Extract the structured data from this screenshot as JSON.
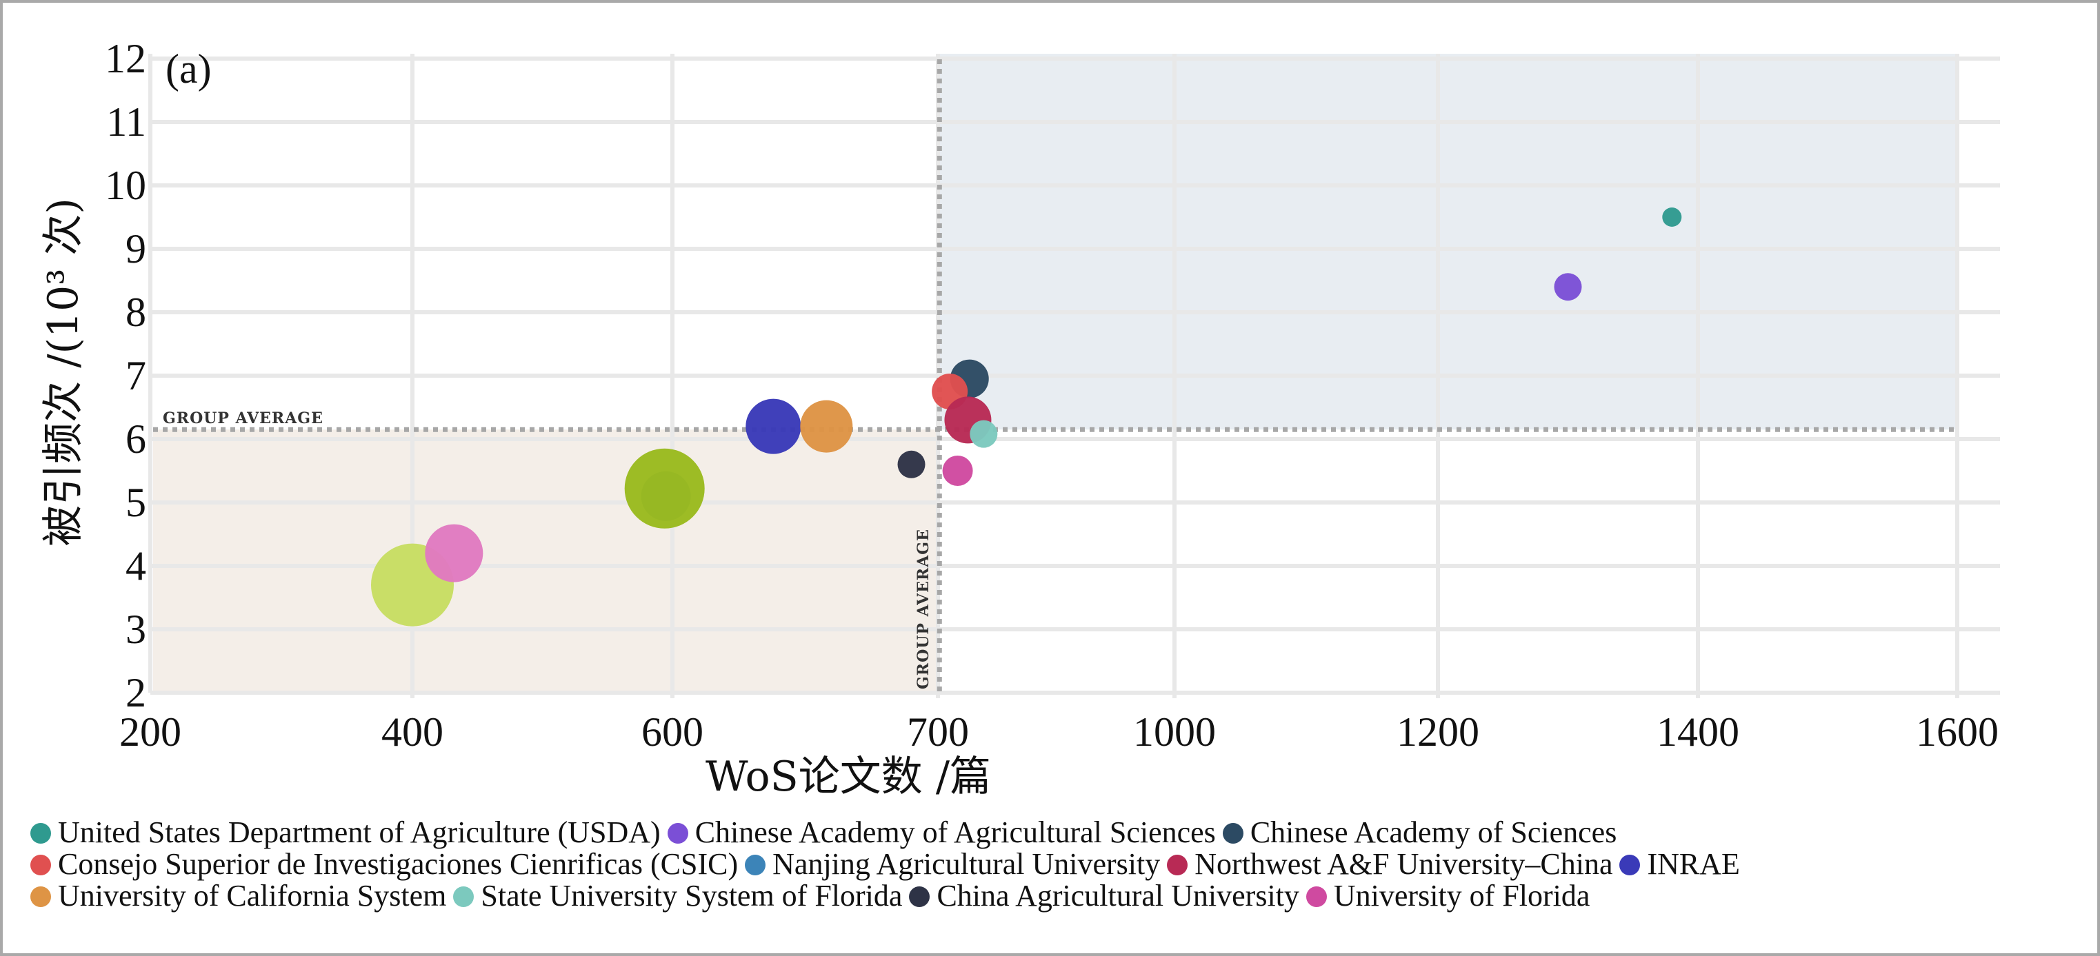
{
  "chart_data": {
    "type": "scatter",
    "panel_label": "(a)",
    "xlabel": "WoS论文数 /篇",
    "ylabel": "被引频次 /(10³ 次)",
    "x_ticks": [
      "200",
      "400",
      "600",
      "700",
      "1000",
      "1200",
      "1400",
      "1600"
    ],
    "y_ticks": [
      "2",
      "3",
      "4",
      "5",
      "6",
      "7",
      "8",
      "9",
      "10",
      "11",
      "12"
    ],
    "ylim": [
      2,
      12
    ],
    "group_average_label": "GROUP AVERAGE",
    "group_average": {
      "x": 702,
      "y": 6.15
    },
    "grid": true,
    "legend_position": "bottom",
    "series": [
      {
        "name": "United States Department of Agriculture (USDA)",
        "color": "#2f9a8f",
        "points": [
          {
            "x": 1380,
            "y": 9.5,
            "size": 0.35
          }
        ]
      },
      {
        "name": "Chinese Academy of Agricultural Sciences",
        "color": "#7b4fd6",
        "points": [
          {
            "x": 1300,
            "y": 8.4,
            "size": 0.5
          }
        ]
      },
      {
        "name": "Chinese Academy of Sciences",
        "color": "#2c4a63",
        "points": [
          {
            "x": 740,
            "y": 6.95,
            "size": 0.7
          }
        ]
      },
      {
        "name": "Consejo Superior de Investigaciones Cienrificas (CSIC)",
        "color": "#e05050",
        "points": [
          {
            "x": 715,
            "y": 6.75,
            "size": 0.65
          }
        ]
      },
      {
        "name": "Nanjing Agricultural University",
        "color": "#3c84b8",
        "points": [
          {
            "x": 595,
            "y": 5.1,
            "size": 0.9
          }
        ]
      },
      {
        "name": "Northwest A&F University–China",
        "color": "#b82a55",
        "points": [
          {
            "x": 738,
            "y": 6.3,
            "size": 0.85
          }
        ]
      },
      {
        "name": "INRAE",
        "color": "#3a3ab8",
        "points": [
          {
            "x": 638,
            "y": 6.2,
            "size": 1.0
          }
        ]
      },
      {
        "name": "University of California System",
        "color": "#de9445",
        "points": [
          {
            "x": 658,
            "y": 6.2,
            "size": 0.95
          }
        ]
      },
      {
        "name": "State University System of Florida",
        "color": "#7cc9be",
        "points": [
          {
            "x": 758,
            "y": 6.08,
            "size": 0.5
          }
        ]
      },
      {
        "name": "China Agricultural University",
        "color": "#2e3346",
        "points": [
          {
            "x": 690,
            "y": 5.6,
            "size": 0.5
          }
        ]
      },
      {
        "name": "University of Florida",
        "color": "#cf4aa0",
        "points": [
          {
            "x": 725,
            "y": 5.5,
            "size": 0.55
          }
        ]
      },
      {
        "name": "",
        "color": "#9aba1e",
        "points": [
          {
            "x": 594,
            "y": 5.22,
            "size": 1.45
          }
        ]
      },
      {
        "name": "",
        "color": "#c7dd62",
        "points": [
          {
            "x": 400,
            "y": 3.7,
            "size": 1.5
          }
        ]
      },
      {
        "name": "",
        "color": "#e07ac0",
        "points": [
          {
            "x": 432,
            "y": 4.2,
            "size": 1.05
          }
        ]
      }
    ],
    "colors": {
      "quadrant_high": "#e8edf2",
      "quadrant_low": "#f4eee8",
      "grid": "#e8e8e8",
      "average_line": "#a7a7a7"
    }
  }
}
